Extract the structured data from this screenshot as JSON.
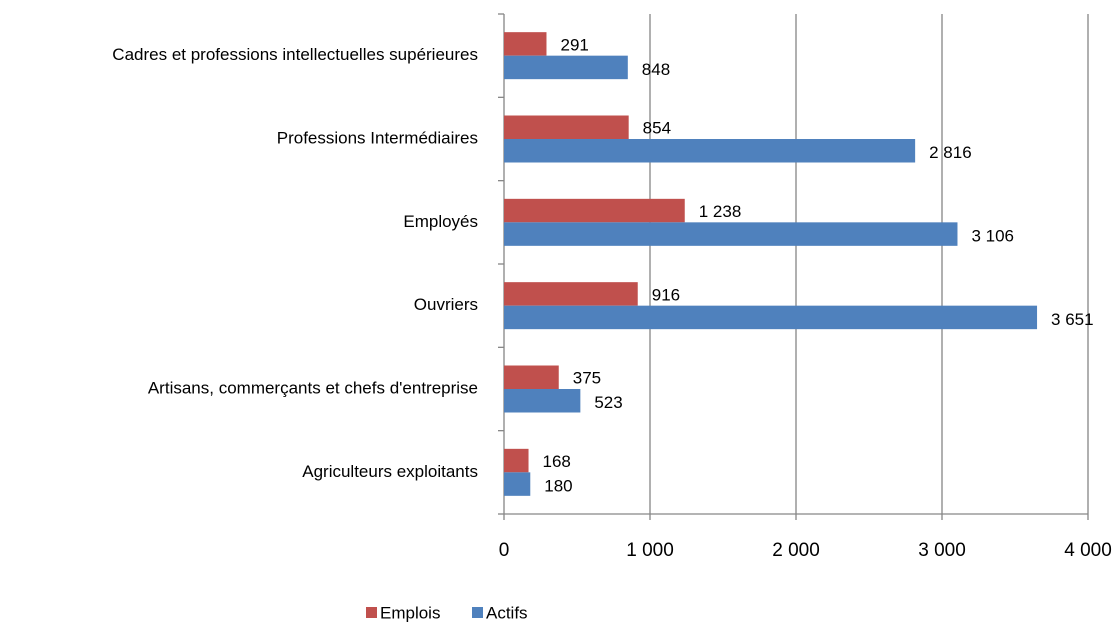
{
  "chart_data": {
    "type": "bar",
    "orientation": "horizontal",
    "categories": [
      "Cadres et professions intellectuelles supérieures",
      "Professions Intermédiaires",
      "Employés",
      "Ouvriers",
      "Artisans, commerçants et chefs d'entreprise",
      "Agriculteurs exploitants"
    ],
    "series": [
      {
        "name": "Emplois",
        "color": "#c0504d",
        "values": [
          291,
          854,
          1238,
          916,
          375,
          168
        ],
        "value_labels": [
          "291",
          "854",
          "1 238",
          "916",
          "375",
          "168"
        ]
      },
      {
        "name": "Actifs",
        "color": "#4f81bd",
        "values": [
          848,
          2816,
          3106,
          3651,
          523,
          180
        ],
        "value_labels": [
          "848",
          "2 816",
          "3 106",
          "3 651",
          "523",
          "180"
        ]
      }
    ],
    "xlim": [
      0,
      4000
    ],
    "xticks": [
      0,
      {
        "value": 1000,
        "label": "1 000"
      },
      {
        "value": 2000,
        "label": "2 000"
      },
      {
        "value": 3000,
        "label": "3 000"
      },
      {
        "value": 4000,
        "label": "4 000"
      }
    ],
    "grid": true,
    "legend": "bottom"
  }
}
